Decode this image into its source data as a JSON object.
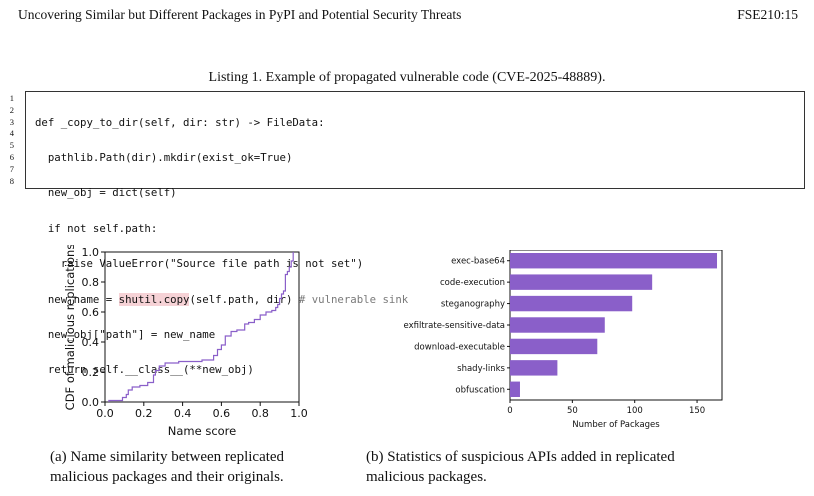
{
  "header": {
    "title": "Uncovering Similar but Different Packages in PyPI and Potential Security Threats",
    "page_ref": "FSE210:15"
  },
  "listing": {
    "caption": "Listing 1. Example of propagated vulnerable code (CVE-2025-48889).",
    "line_numbers": [
      "1",
      "2",
      "3",
      "4",
      "5",
      "6",
      "7",
      "8"
    ],
    "lines": [
      "def _copy_to_dir(self, dir: str) -> FileData:",
      "  pathlib.Path(dir).mkdir(exist_ok=True)",
      "  new_obj = dict(self)",
      "  if not self.path:",
      "    raise ValueError(\"Source file path is not set\")",
      "  new_name = ",
      "  new_obj[\"path\"] = new_name",
      "  return self.__class__(**new_obj)"
    ],
    "line6_highlight": "shutil.copy",
    "line6_rest": "(self.path, dir) ",
    "line6_comment": "# vulnerable sink"
  },
  "figures": {
    "a_caption": [
      "(a) Name similarity between replicated",
      "malicious packages and their originals."
    ],
    "b_caption": [
      "(b) Statistics of suspicious APIs added in replicated",
      "malicious packages."
    ]
  },
  "chart_data": [
    {
      "type": "line",
      "xlabel": "Name score",
      "ylabel": "CDF of malicious replications",
      "xlim": [
        0.0,
        1.0
      ],
      "ylim": [
        0.0,
        1.0
      ],
      "x_ticks": [
        "0.0",
        "0.2",
        "0.4",
        "0.6",
        "0.8",
        "1.0"
      ],
      "y_ticks": [
        "0.0",
        "0.2",
        "0.4",
        "0.6",
        "0.8",
        "1.0"
      ],
      "color": "#8a5fc9",
      "points": [
        [
          0.02,
          0.0
        ],
        [
          0.02,
          0.01
        ],
        [
          0.09,
          0.01
        ],
        [
          0.09,
          0.03
        ],
        [
          0.11,
          0.03
        ],
        [
          0.11,
          0.05
        ],
        [
          0.12,
          0.05
        ],
        [
          0.12,
          0.08
        ],
        [
          0.14,
          0.08
        ],
        [
          0.14,
          0.1
        ],
        [
          0.18,
          0.1
        ],
        [
          0.18,
          0.11
        ],
        [
          0.22,
          0.11
        ],
        [
          0.22,
          0.13
        ],
        [
          0.25,
          0.13
        ],
        [
          0.25,
          0.18
        ],
        [
          0.26,
          0.18
        ],
        [
          0.26,
          0.21
        ],
        [
          0.28,
          0.21
        ],
        [
          0.28,
          0.24
        ],
        [
          0.31,
          0.24
        ],
        [
          0.31,
          0.26
        ],
        [
          0.38,
          0.26
        ],
        [
          0.38,
          0.27
        ],
        [
          0.5,
          0.27
        ],
        [
          0.5,
          0.28
        ],
        [
          0.56,
          0.28
        ],
        [
          0.56,
          0.31
        ],
        [
          0.58,
          0.31
        ],
        [
          0.58,
          0.35
        ],
        [
          0.6,
          0.35
        ],
        [
          0.6,
          0.38
        ],
        [
          0.62,
          0.38
        ],
        [
          0.62,
          0.44
        ],
        [
          0.65,
          0.44
        ],
        [
          0.65,
          0.47
        ],
        [
          0.68,
          0.47
        ],
        [
          0.68,
          0.48
        ],
        [
          0.72,
          0.48
        ],
        [
          0.72,
          0.52
        ],
        [
          0.74,
          0.52
        ],
        [
          0.74,
          0.53
        ],
        [
          0.77,
          0.53
        ],
        [
          0.77,
          0.55
        ],
        [
          0.8,
          0.55
        ],
        [
          0.8,
          0.58
        ],
        [
          0.83,
          0.58
        ],
        [
          0.83,
          0.6
        ],
        [
          0.86,
          0.6
        ],
        [
          0.86,
          0.61
        ],
        [
          0.88,
          0.61
        ],
        [
          0.88,
          0.63
        ],
        [
          0.89,
          0.63
        ],
        [
          0.89,
          0.65
        ],
        [
          0.9,
          0.65
        ],
        [
          0.9,
          0.69
        ],
        [
          0.91,
          0.69
        ],
        [
          0.91,
          0.72
        ],
        [
          0.92,
          0.72
        ],
        [
          0.92,
          0.74
        ],
        [
          0.93,
          0.74
        ],
        [
          0.93,
          0.85
        ],
        [
          0.94,
          0.85
        ],
        [
          0.94,
          0.87
        ],
        [
          0.95,
          0.87
        ],
        [
          0.95,
          0.9
        ],
        [
          0.96,
          0.9
        ],
        [
          0.96,
          0.94
        ],
        [
          0.97,
          0.94
        ],
        [
          0.97,
          1.0
        ]
      ]
    },
    {
      "type": "bar",
      "orientation": "horizontal",
      "xlabel": "Number of Packages",
      "xlim": [
        0,
        170
      ],
      "x_ticks": [
        "0",
        "50",
        "100",
        "150"
      ],
      "color": "#8a5fc9",
      "categories": [
        "exec-base64",
        "code-execution",
        "steganography",
        "exfiltrate-sensitive-data",
        "download-executable",
        "shady-links",
        "obfuscation"
      ],
      "values": [
        166,
        114,
        98,
        76,
        70,
        38,
        8
      ]
    }
  ]
}
